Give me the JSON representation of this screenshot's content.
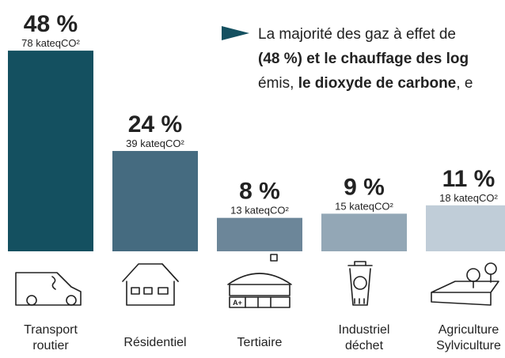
{
  "chart_data": {
    "type": "bar",
    "annotation": [
      [
        {
          "text": "La majorité des gaz à effet de",
          "bold": false
        }
      ],
      [
        {
          "text": "(48 %) et le chauffage des log",
          "bold": true
        }
      ],
      [
        {
          "text": "émis, ",
          "bold": false
        },
        {
          "text": "le dioxyde de carbone",
          "bold": true
        },
        {
          "text": ", e",
          "bold": false
        }
      ]
    ],
    "categories": [
      "Transport routier",
      "Résidentiel",
      "Tertiaire",
      "Industriel déchet",
      "Agriculture Sylviculture"
    ],
    "series": [
      {
        "name": "part",
        "values": [
          48,
          24,
          8,
          9,
          11
        ],
        "value_labels": [
          "48 %",
          "24 %",
          "8 %",
          "9 %",
          "11 %"
        ]
      },
      {
        "name": "émissions",
        "values": [
          78,
          39,
          13,
          15,
          18
        ],
        "value_labels": [
          "78 kateqCO²",
          "39 kateqCO²",
          "13 kateqCO²",
          "15 kateqCO²",
          "18 kateqCO²"
        ]
      }
    ],
    "colors": [
      "#145060",
      "#456b80",
      "#6c8699",
      "#93a7b6",
      "#c0cdd8"
    ]
  }
}
